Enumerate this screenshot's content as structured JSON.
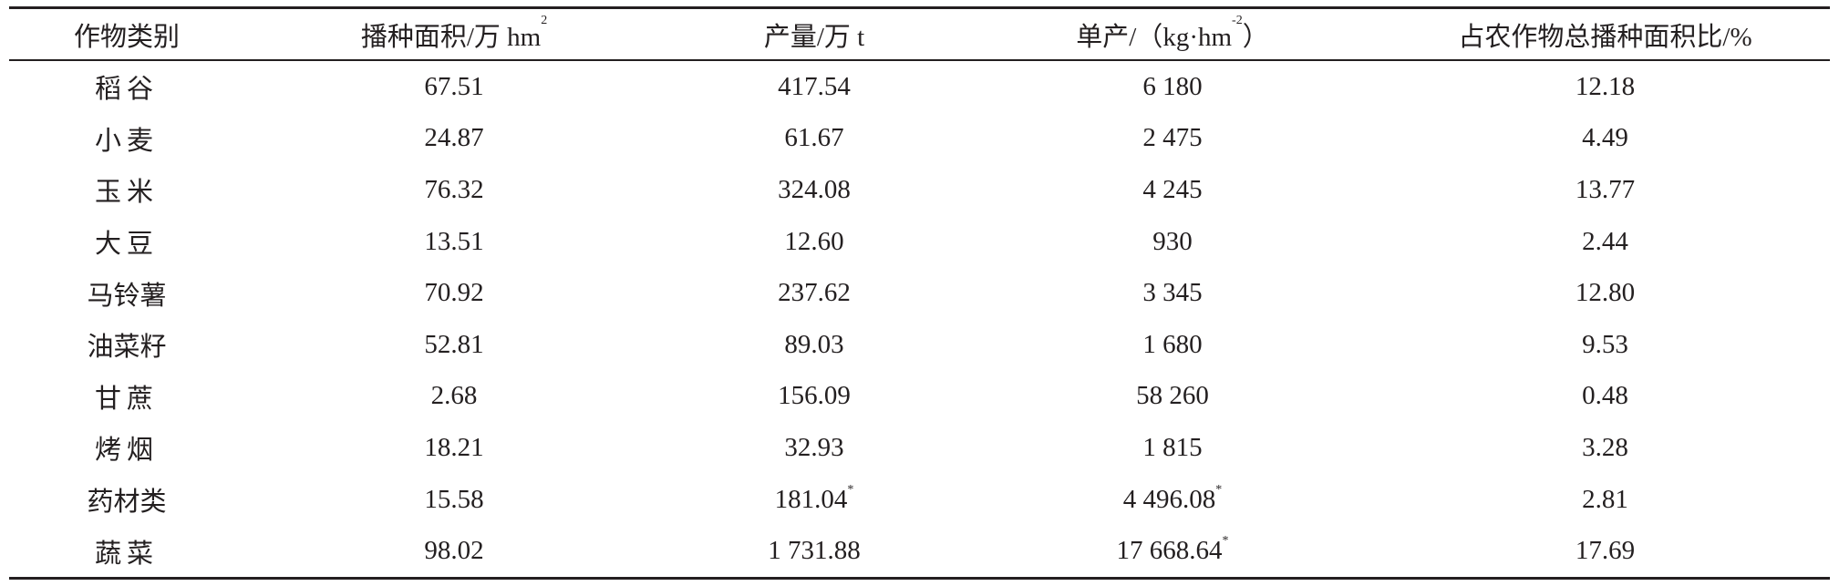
{
  "table": {
    "headers": [
      {
        "label": "作物类别",
        "sup": ""
      },
      {
        "label": "播种面积/万 hm",
        "sup": "2"
      },
      {
        "label": "产量/万 t",
        "sup": ""
      },
      {
        "label": "单产/（kg·hm",
        "sup": "-2",
        "tail": "）"
      },
      {
        "label": "占农作物总播种面积比/%",
        "sup": ""
      }
    ],
    "rows": [
      {
        "crop": "稻谷",
        "area": "67.51",
        "output": "417.54",
        "output_mark": "",
        "yield": "6 180",
        "yield_mark": "",
        "share": "12.18"
      },
      {
        "crop": "小麦",
        "area": "24.87",
        "output": "61.67",
        "output_mark": "",
        "yield": "2 475",
        "yield_mark": "",
        "share": "4.49"
      },
      {
        "crop": "玉米",
        "area": "76.32",
        "output": "324.08",
        "output_mark": "",
        "yield": "4 245",
        "yield_mark": "",
        "share": "13.77"
      },
      {
        "crop": "大豆",
        "area": "13.51",
        "output": "12.60",
        "output_mark": "",
        "yield": "930",
        "yield_mark": "",
        "share": "2.44"
      },
      {
        "crop": "马铃薯",
        "area": "70.92",
        "output": "237.62",
        "output_mark": "",
        "yield": "3 345",
        "yield_mark": "",
        "share": "12.80"
      },
      {
        "crop": "油菜籽",
        "area": "52.81",
        "output": "89.03",
        "output_mark": "",
        "yield": "1 680",
        "yield_mark": "",
        "share": "9.53"
      },
      {
        "crop": "甘蔗",
        "area": "2.68",
        "output": "156.09",
        "output_mark": "",
        "yield": "58 260",
        "yield_mark": "",
        "share": "0.48"
      },
      {
        "crop": "烤烟",
        "area": "18.21",
        "output": "32.93",
        "output_mark": "",
        "yield": "1 815",
        "yield_mark": "",
        "share": "3.28"
      },
      {
        "crop": "药材类",
        "area": "15.58",
        "output": "181.04",
        "output_mark": "*",
        "yield": "4 496.08",
        "yield_mark": "*",
        "share": "2.81"
      },
      {
        "crop": "蔬菜",
        "area": "98.02",
        "output": "1 731.88",
        "output_mark": "",
        "yield": "17 668.64",
        "yield_mark": "*",
        "share": "17.69"
      }
    ]
  }
}
